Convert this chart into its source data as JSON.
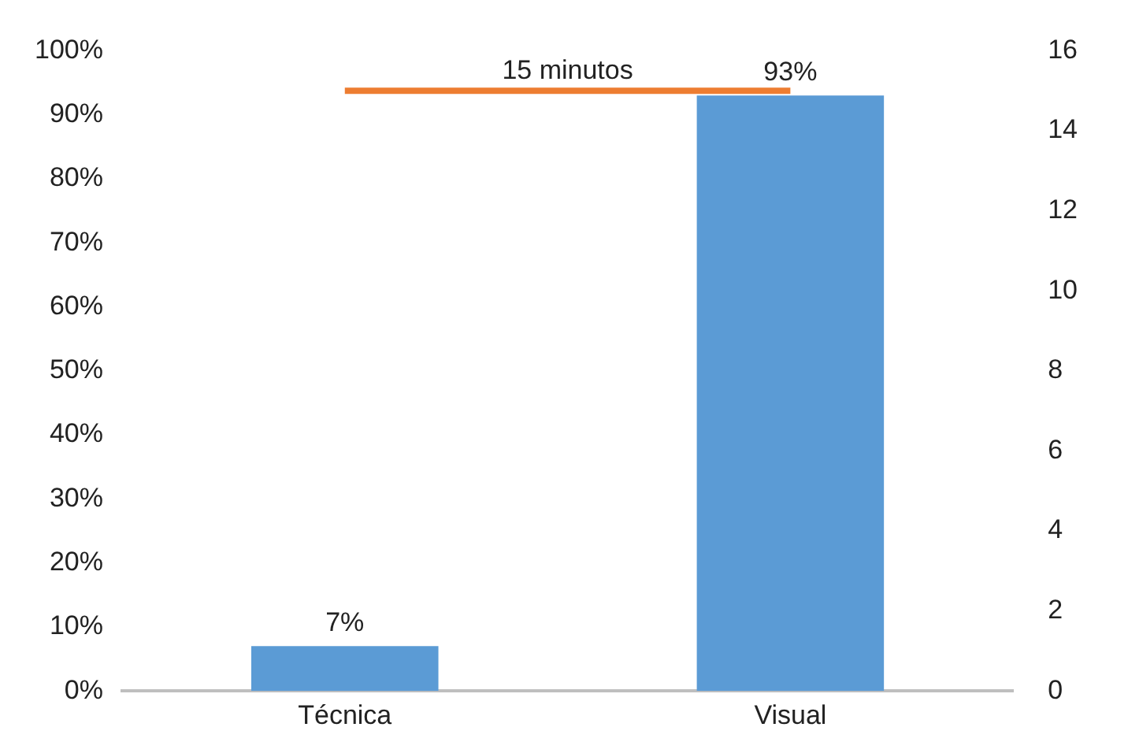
{
  "chart_data": {
    "type": "bar",
    "categories": [
      "Técnica",
      "Visual"
    ],
    "series": [
      {
        "color": "#5b9bd5",
        "values": [
          7,
          93
        ],
        "value_labels": [
          "7%",
          "93%"
        ]
      },
      {
        "type": "line",
        "name": "15 minutos",
        "color": "#ed7d31",
        "axis": "y2",
        "values": [
          15,
          15
        ],
        "marker": "none"
      }
    ],
    "ylim": [
      0,
      100
    ],
    "yticks": [
      {
        "value": 0,
        "label": "0%"
      },
      {
        "value": 10,
        "label": "10%"
      },
      {
        "value": 20,
        "label": "20%"
      },
      {
        "value": 30,
        "label": "30%"
      },
      {
        "value": 40,
        "label": "40%"
      },
      {
        "value": 50,
        "label": "50%"
      },
      {
        "value": 60,
        "label": "60%"
      },
      {
        "value": 70,
        "label": "70%"
      },
      {
        "value": 80,
        "label": "80%"
      },
      {
        "value": 90,
        "label": "90%"
      },
      {
        "value": 100,
        "label": "100%"
      }
    ],
    "y2lim": [
      0,
      16
    ],
    "y2ticks": [
      0,
      2,
      4,
      6,
      8,
      10,
      12,
      14,
      16
    ],
    "grid": false,
    "legend": false
  }
}
